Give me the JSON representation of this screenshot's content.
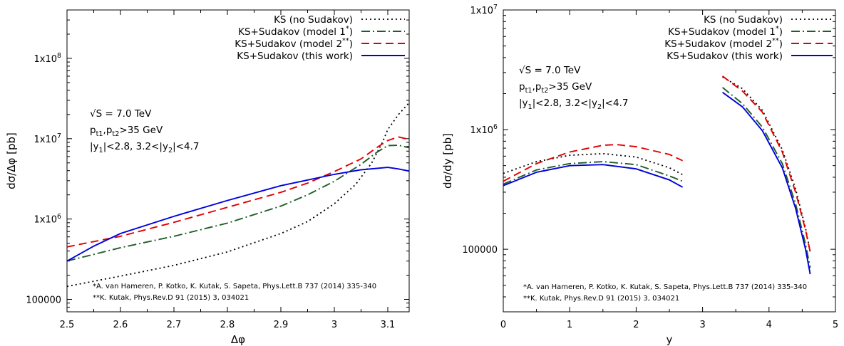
{
  "chart_data": [
    {
      "type": "line",
      "xlabel": "Δφ",
      "ylabel": "dσ/Δφ [pb]",
      "xscale": "linear",
      "yscale": "log",
      "xlim": [
        2.5,
        3.14
      ],
      "ylim": [
        70000,
        400000000
      ],
      "x_ticks": [
        "2.5",
        "2.6",
        "2.7",
        "2.8",
        "2.9",
        "3",
        "3.1"
      ],
      "y_ticks": [
        "100000",
        "1x10^6",
        "1x10^7",
        "1x10^8"
      ],
      "grid": false,
      "legend_position": "top-right",
      "info_lines": [
        "√S = 7.0 TeV",
        "p_{t1},p_{t2}>35 GeV",
        "|y_1|<2.8, 3.2<|y_2|<4.7"
      ],
      "references": [
        "*A. van Hameren, P. Kotko, K. Kutak, S. Sapeta, Phys.Lett.B 737 (2014) 335-340",
        "**K. Kutak, Phys.Rev.D 91 (2015) 3, 034021"
      ],
      "series": [
        {
          "name": "KS (no Sudakov)",
          "color": "#000000",
          "dash": "dotted",
          "x": [
            2.5,
            2.6,
            2.7,
            2.8,
            2.9,
            2.95,
            3.0,
            3.04,
            3.07,
            3.09,
            3.1,
            3.12,
            3.14
          ],
          "y": [
            145000,
            195000,
            265000,
            390000,
            660000,
            930000,
            1550000,
            2700000,
            5000000,
            9000000,
            13000000,
            20000000,
            28000000
          ]
        },
        {
          "name": "KS+Sudakov (model 1^*)",
          "color": "#1e5e28",
          "dash": "dashdot",
          "x": [
            2.5,
            2.6,
            2.7,
            2.8,
            2.9,
            2.95,
            3.0,
            3.05,
            3.08,
            3.1,
            3.12,
            3.14
          ],
          "y": [
            300000,
            440000,
            610000,
            890000,
            1450000,
            2000000,
            2950000,
            4800000,
            6800000,
            8200000,
            8300000,
            7700000
          ]
        },
        {
          "name": "KS+Sudakov (model 2^**)",
          "color": "#e00000",
          "dash": "dashed",
          "x": [
            2.5,
            2.6,
            2.7,
            2.8,
            2.9,
            2.95,
            3.0,
            3.05,
            3.08,
            3.1,
            3.12,
            3.14
          ],
          "y": [
            450000,
            610000,
            910000,
            1400000,
            2150000,
            2800000,
            3900000,
            5600000,
            7800000,
            9500000,
            10500000,
            9800000
          ]
        },
        {
          "name": "KS+Sudakov (this work)",
          "color": "#0000dd",
          "dash": "solid",
          "x": [
            2.5,
            2.55,
            2.6,
            2.7,
            2.8,
            2.9,
            3.0,
            3.05,
            3.1,
            3.12,
            3.14
          ],
          "y": [
            300000,
            460000,
            660000,
            1080000,
            1700000,
            2600000,
            3600000,
            4100000,
            4400000,
            4200000,
            3950000
          ]
        }
      ]
    },
    {
      "type": "line",
      "xlabel": "y",
      "ylabel": "dσ/dy [pb]",
      "xscale": "linear",
      "yscale": "log",
      "xlim": [
        0,
        5
      ],
      "ylim": [
        30000,
        10000000
      ],
      "x_ticks": [
        "0",
        "1",
        "2",
        "3",
        "4",
        "5"
      ],
      "y_ticks": [
        "100000",
        "1x10^6",
        "1x10^7"
      ],
      "grid": false,
      "legend_position": "top-right",
      "info_lines": [
        "√S = 7.0 TeV",
        "p_{t1},p_{t2}>35 GeV",
        "|y_1|<2.8, 3.2<|y_2|<4.7"
      ],
      "references": [
        "*A. van Hameren, P. Kotko, K. Kutak, S. Sapeta, Phys.Lett.B 737 (2014) 335-340",
        "**K. Kutak, Phys.Rev.D 91 (2015) 3, 034021"
      ],
      "series": [
        {
          "name": "KS (no Sudakov)",
          "color": "#000000",
          "dash": "dotted",
          "x": [
            0,
            0.5,
            1.0,
            1.5,
            2.0,
            2.5,
            2.7,
            null,
            3.3,
            3.6,
            3.9,
            4.2,
            4.4,
            4.55,
            4.62
          ],
          "y": [
            430000,
            540000,
            610000,
            630000,
            590000,
            480000,
            420000,
            null,
            2750000,
            2200000,
            1450000,
            680000,
            320000,
            150000,
            95000
          ]
        },
        {
          "name": "KS+Sudakov (model 1^*)",
          "color": "#1e5e28",
          "dash": "dashdot",
          "x": [
            0,
            0.5,
            1.0,
            1.5,
            2.0,
            2.5,
            2.7,
            null,
            3.3,
            3.6,
            3.9,
            4.2,
            4.4,
            4.55,
            4.62
          ],
          "y": [
            350000,
            460000,
            520000,
            540000,
            510000,
            410000,
            370000,
            null,
            2250000,
            1650000,
            1050000,
            520000,
            240000,
            110000,
            70000
          ]
        },
        {
          "name": "KS+Sudakov (model 2^**)",
          "color": "#e00000",
          "dash": "dashed",
          "x": [
            0,
            0.5,
            1.0,
            1.5,
            1.7,
            2.0,
            2.5,
            2.7,
            null,
            3.3,
            3.6,
            3.9,
            4.2,
            4.4,
            4.55,
            4.62
          ],
          "y": [
            370000,
            520000,
            650000,
            740000,
            750000,
            720000,
            620000,
            550000,
            null,
            2800000,
            2100000,
            1400000,
            650000,
            300000,
            145000,
            95000
          ]
        },
        {
          "name": "KS+Sudakov (this work)",
          "color": "#0000dd",
          "dash": "solid",
          "x": [
            0,
            0.5,
            1.0,
            1.5,
            2.0,
            2.5,
            2.7,
            null,
            3.3,
            3.6,
            3.9,
            4.2,
            4.4,
            4.55,
            4.62
          ],
          "y": [
            340000,
            440000,
            500000,
            510000,
            470000,
            380000,
            330000,
            null,
            2050000,
            1550000,
            980000,
            480000,
            220000,
            100000,
            62000
          ]
        }
      ]
    }
  ]
}
